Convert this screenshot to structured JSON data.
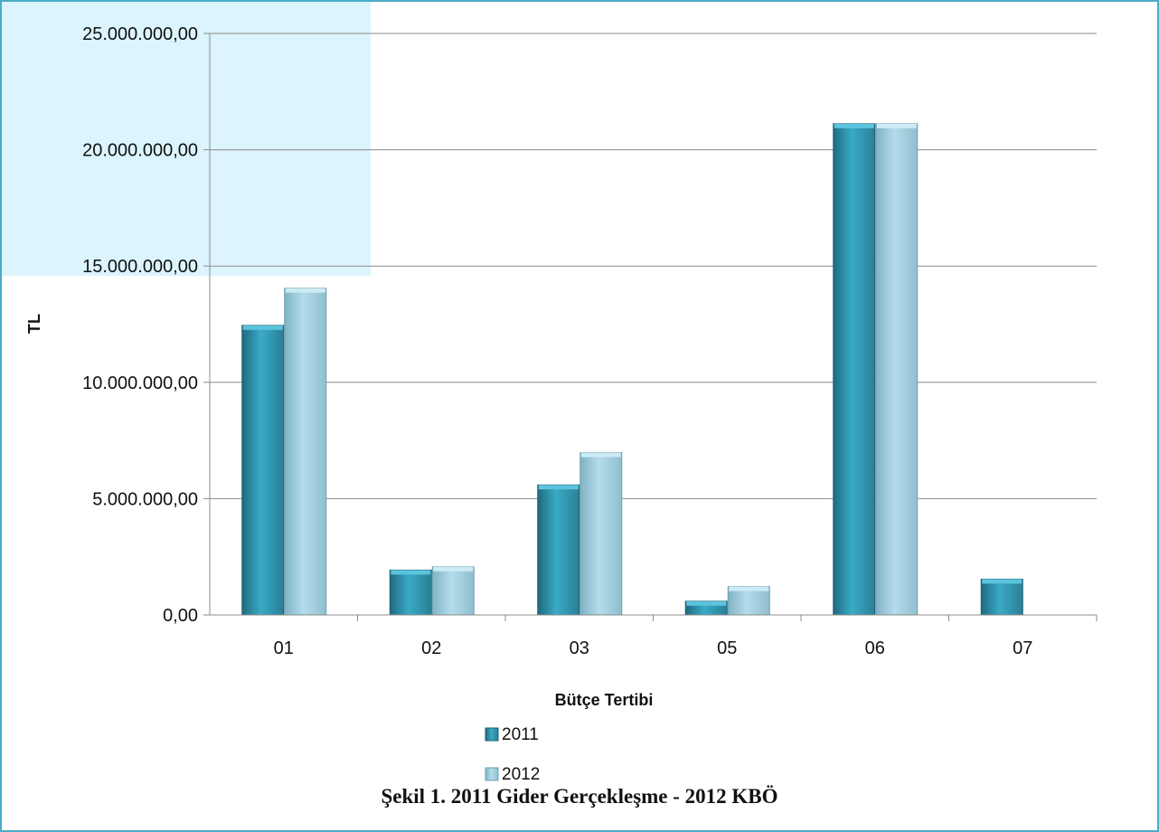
{
  "chart_data": {
    "type": "bar",
    "categories": [
      "01",
      "02",
      "03",
      "05",
      "06",
      "07"
    ],
    "series": [
      {
        "name": "2011",
        "values": [
          12450000,
          1930000,
          5590000,
          590000,
          21120000,
          1540000
        ],
        "color": "#31859c"
      },
      {
        "name": "2012",
        "values": [
          14050000,
          2070000,
          6980000,
          1220000,
          21120000,
          null
        ],
        "color": "#93cddd"
      }
    ],
    "ylabel": "TL",
    "xlabel": "Bütçe Tertibi",
    "ylim": [
      0,
      25000000
    ],
    "yticks": [
      "0,00",
      "5.000.000,00",
      "10.000.000,00",
      "15.000.000,00",
      "20.000.000,00",
      "25.000.000,00"
    ],
    "grid": true,
    "legend_position": "bottom"
  },
  "caption": "Şekil 1. 2011 Gider Gerçekleşme - 2012 KBÖ"
}
